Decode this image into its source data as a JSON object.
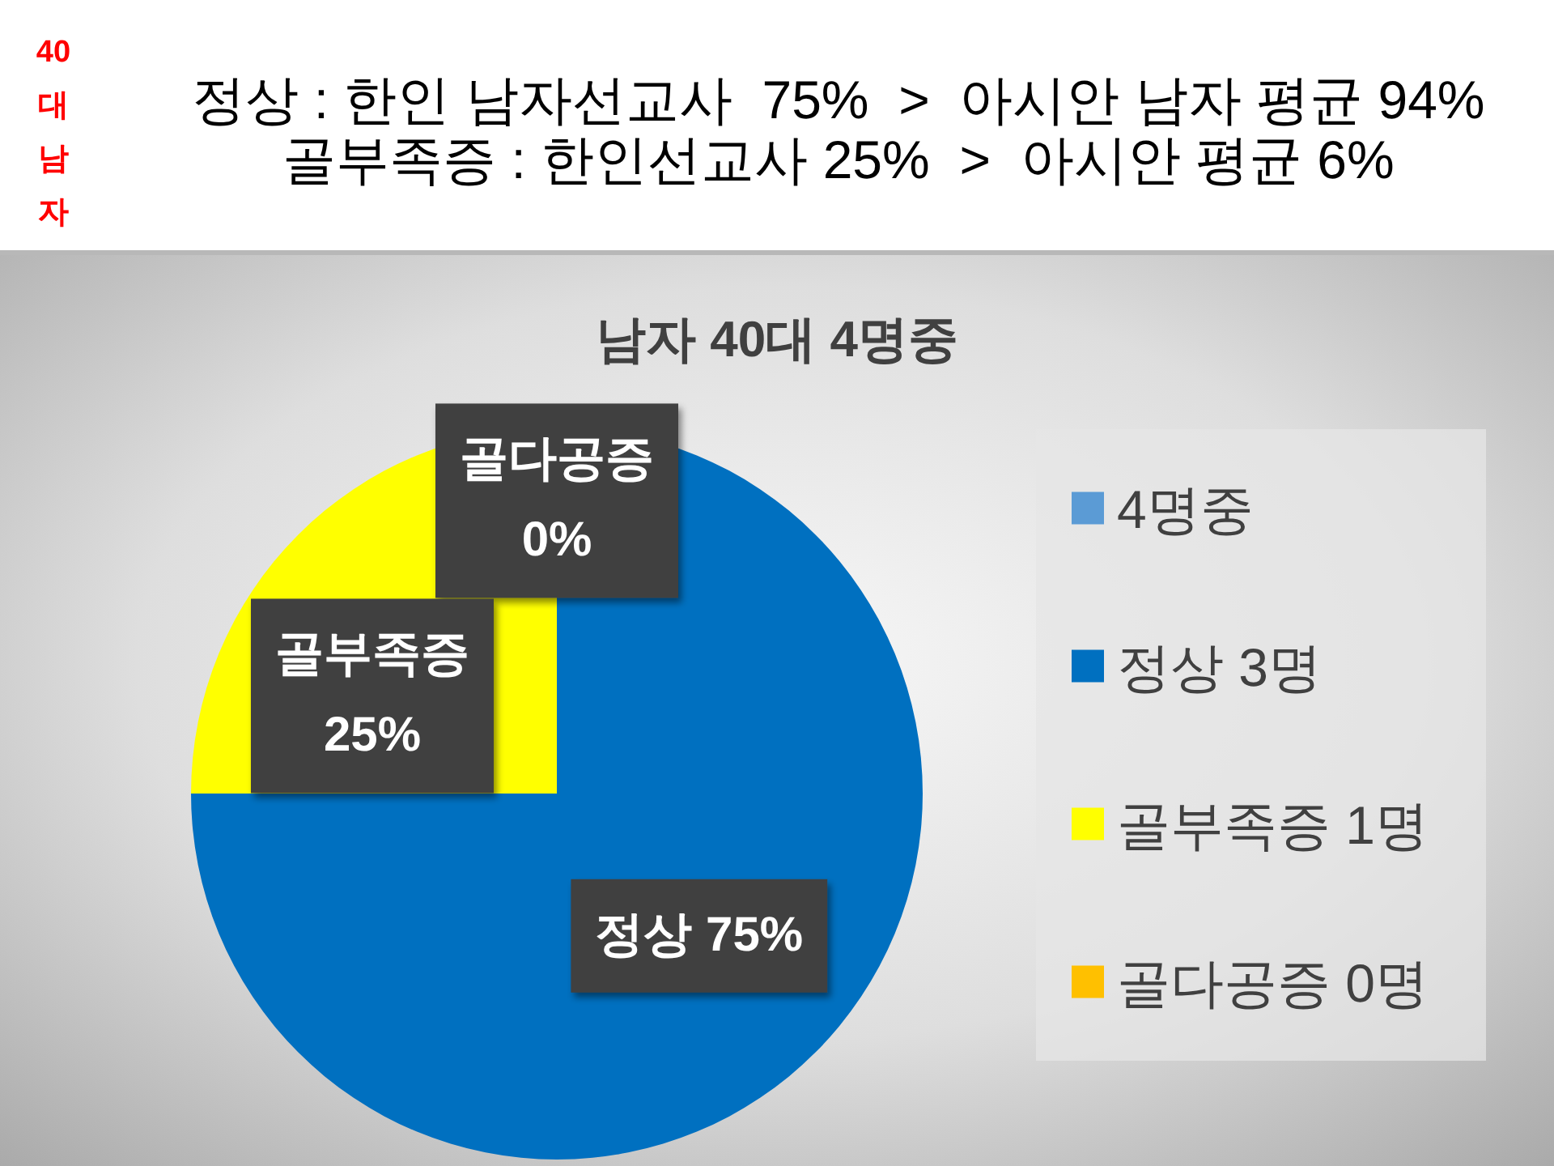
{
  "chart_data": {
    "type": "pie",
    "title": "남자 40대 4명중",
    "categories": [
      "4명중",
      "정상 3명",
      "골부족증 1명",
      "골다공증 0명"
    ],
    "values": [
      0,
      75,
      25,
      0
    ],
    "colors": [
      "#5b9bd5",
      "#0070c0",
      "#ffff00",
      "#ffc000"
    ],
    "value_labels": [
      null,
      "정상 75%",
      "골부족증\n25%",
      "골다공증\n0%"
    ],
    "legend": "right",
    "annotations": [
      "40\n대\n남\n자",
      "정상 : 한인 남자선교사  75%  >  아시안 남자 평균 94%",
      "골부족증 : 한인선교사 25%  >  아시안 평균 6%"
    ]
  }
}
